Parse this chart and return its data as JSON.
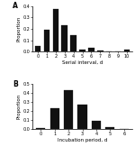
{
  "panel_A": {
    "title": "A",
    "x": [
      0,
      1,
      2,
      3,
      4,
      5,
      6,
      7,
      8,
      9,
      10
    ],
    "y": [
      0.05,
      0.19,
      0.37,
      0.23,
      0.14,
      0.02,
      0.03,
      0.01,
      0.0,
      0.0,
      0.02
    ],
    "xlabel": "Serial interval, d",
    "ylabel": "Proportion",
    "ylim": [
      0,
      0.4
    ],
    "yticks": [
      0.0,
      0.1,
      0.2,
      0.3,
      0.4
    ],
    "bar_color": "#111111",
    "bar_width": 0.65
  },
  "panel_B": {
    "title": "B",
    "x": [
      0,
      1,
      2,
      3,
      4,
      5,
      6
    ],
    "y": [
      0.01,
      0.23,
      0.43,
      0.27,
      0.09,
      0.02,
      0.0
    ],
    "xlabel": "Incubation period, d",
    "ylabel": "Proportion",
    "ylim": [
      0,
      0.5
    ],
    "yticks": [
      0.0,
      0.1,
      0.2,
      0.3,
      0.4,
      0.5
    ],
    "bar_color": "#111111",
    "bar_width": 0.65
  },
  "fig_width": 1.5,
  "fig_height": 1.63,
  "dpi": 100,
  "background_color": "#ffffff",
  "label_fontsize": 4.0,
  "tick_fontsize": 3.5,
  "title_fontsize": 5.5
}
